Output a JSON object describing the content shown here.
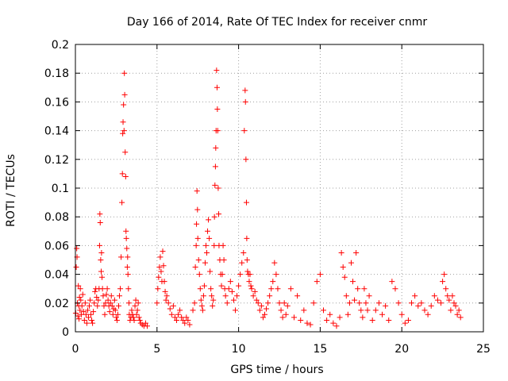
{
  "chart_data": {
    "type": "scatter",
    "title": "Day 166 of 2014, Rate Of TEC Index for receiver cnmr",
    "xlabel": "GPS time / hours",
    "ylabel": "ROTI / TECUs",
    "xlim": [
      0,
      25
    ],
    "ylim": [
      0,
      0.2
    ],
    "xticks": [
      0,
      5,
      10,
      15,
      20,
      25
    ],
    "xtick_labels": [
      "0",
      "5",
      "10",
      "15",
      "20",
      "25"
    ],
    "yticks": [
      0,
      0.02,
      0.04,
      0.06,
      0.08,
      0.1,
      0.12,
      0.14,
      0.16,
      0.18,
      0.2
    ],
    "ytick_labels": [
      "0",
      "0.02",
      "0.04",
      "0.06",
      "0.08",
      "0.1",
      "0.12",
      "0.14",
      "0.16",
      "0.18",
      "0.2"
    ],
    "grid": true,
    "marker": "+",
    "color": "#ff0000",
    "series": [
      {
        "name": "ROTI",
        "x": [
          0.02,
          0.05,
          0.08,
          0.1,
          0.12,
          0.15,
          0.18,
          0.2,
          0.22,
          0.25,
          0.28,
          0.3,
          0.33,
          0.36,
          0.4,
          0.45,
          0.5,
          0.55,
          0.6,
          0.65,
          0.7,
          0.75,
          0.8,
          0.85,
          0.9,
          0.95,
          1.0,
          1.05,
          1.1,
          1.15,
          1.2,
          1.25,
          1.3,
          1.35,
          1.4,
          1.45,
          1.48,
          1.5,
          1.52,
          1.55,
          1.58,
          1.6,
          1.63,
          1.66,
          1.7,
          1.75,
          1.8,
          1.85,
          1.9,
          1.95,
          2.0,
          2.05,
          2.1,
          2.15,
          2.2,
          2.25,
          2.3,
          2.35,
          2.4,
          2.45,
          2.5,
          2.55,
          2.6,
          2.65,
          2.7,
          2.75,
          2.8,
          2.85,
          2.88,
          2.9,
          2.92,
          2.95,
          2.98,
          3.0,
          3.02,
          3.05,
          3.08,
          3.1,
          3.12,
          3.15,
          3.18,
          3.2,
          3.22,
          3.25,
          3.28,
          3.3,
          3.35,
          3.4,
          3.45,
          3.5,
          3.55,
          3.6,
          3.65,
          3.7,
          3.75,
          3.8,
          3.85,
          3.9,
          3.95,
          4.0,
          4.1,
          4.2,
          4.3,
          4.4,
          5.0,
          5.05,
          5.1,
          5.15,
          5.2,
          5.25,
          5.3,
          5.35,
          5.4,
          5.45,
          5.5,
          5.55,
          5.6,
          5.7,
          5.8,
          5.9,
          6.0,
          6.1,
          6.2,
          6.3,
          6.4,
          6.5,
          6.6,
          6.7,
          6.8,
          6.9,
          7.0,
          7.2,
          7.3,
          7.35,
          7.4,
          7.42,
          7.45,
          7.48,
          7.5,
          7.55,
          7.6,
          7.65,
          7.7,
          7.75,
          7.8,
          7.85,
          7.9,
          7.95,
          8.0,
          8.05,
          8.1,
          8.15,
          8.2,
          8.25,
          8.3,
          8.35,
          8.4,
          8.45,
          8.5,
          8.52,
          8.55,
          8.58,
          8.6,
          8.62,
          8.65,
          8.68,
          8.7,
          8.72,
          8.75,
          8.78,
          8.8,
          8.85,
          8.9,
          8.95,
          9.0,
          9.05,
          9.1,
          9.15,
          9.2,
          9.3,
          9.4,
          9.5,
          9.6,
          9.7,
          9.8,
          9.9,
          10.0,
          10.1,
          10.2,
          10.3,
          10.35,
          10.4,
          10.42,
          10.45,
          10.48,
          10.5,
          10.52,
          10.55,
          10.6,
          10.65,
          10.7,
          10.75,
          10.8,
          10.9,
          11.0,
          11.1,
          11.2,
          11.3,
          11.4,
          11.5,
          11.6,
          11.7,
          11.8,
          11.9,
          12.0,
          12.1,
          12.2,
          12.3,
          12.4,
          12.5,
          12.6,
          12.7,
          12.8,
          12.9,
          13.0,
          13.2,
          13.4,
          13.6,
          13.8,
          14.0,
          14.2,
          14.4,
          14.6,
          14.8,
          15.0,
          15.2,
          15.4,
          15.6,
          15.8,
          16.0,
          16.2,
          16.3,
          16.4,
          16.5,
          16.6,
          16.7,
          16.8,
          16.9,
          17.0,
          17.1,
          17.2,
          17.3,
          17.4,
          17.5,
          17.6,
          17.7,
          17.8,
          17.9,
          18.0,
          18.2,
          18.4,
          18.6,
          18.8,
          19.0,
          19.2,
          19.4,
          19.6,
          19.8,
          20.0,
          20.2,
          20.4,
          20.6,
          20.8,
          21.0,
          21.2,
          21.4,
          21.6,
          21.8,
          22.0,
          22.2,
          22.4,
          22.5,
          22.6,
          22.7,
          22.8,
          22.9,
          23.0,
          23.1,
          23.2,
          23.3,
          23.4,
          23.5,
          23.6
        ],
        "y": [
          0.013,
          0.045,
          0.058,
          0.052,
          0.02,
          0.011,
          0.032,
          0.018,
          0.009,
          0.024,
          0.015,
          0.03,
          0.022,
          0.012,
          0.018,
          0.026,
          0.014,
          0.008,
          0.02,
          0.012,
          0.006,
          0.015,
          0.01,
          0.018,
          0.022,
          0.012,
          0.008,
          0.006,
          0.014,
          0.02,
          0.028,
          0.03,
          0.024,
          0.018,
          0.022,
          0.03,
          0.06,
          0.082,
          0.076,
          0.05,
          0.042,
          0.055,
          0.038,
          0.03,
          0.025,
          0.018,
          0.012,
          0.02,
          0.026,
          0.03,
          0.022,
          0.018,
          0.014,
          0.02,
          0.025,
          0.018,
          0.012,
          0.016,
          0.022,
          0.015,
          0.01,
          0.008,
          0.012,
          0.018,
          0.025,
          0.03,
          0.052,
          0.09,
          0.11,
          0.138,
          0.146,
          0.158,
          0.14,
          0.18,
          0.165,
          0.125,
          0.108,
          0.07,
          0.065,
          0.058,
          0.045,
          0.052,
          0.04,
          0.03,
          0.02,
          0.012,
          0.008,
          0.01,
          0.015,
          0.012,
          0.01,
          0.008,
          0.018,
          0.022,
          0.012,
          0.015,
          0.02,
          0.01,
          0.008,
          0.006,
          0.005,
          0.004,
          0.006,
          0.004,
          0.02,
          0.03,
          0.038,
          0.045,
          0.052,
          0.042,
          0.035,
          0.056,
          0.046,
          0.035,
          0.028,
          0.022,
          0.025,
          0.02,
          0.016,
          0.012,
          0.018,
          0.01,
          0.008,
          0.012,
          0.015,
          0.01,
          0.008,
          0.006,
          0.01,
          0.008,
          0.005,
          0.015,
          0.02,
          0.045,
          0.06,
          0.075,
          0.098,
          0.085,
          0.065,
          0.05,
          0.04,
          0.03,
          0.022,
          0.018,
          0.015,
          0.025,
          0.032,
          0.048,
          0.06,
          0.055,
          0.07,
          0.078,
          0.065,
          0.042,
          0.03,
          0.025,
          0.018,
          0.022,
          0.06,
          0.08,
          0.102,
          0.115,
          0.128,
          0.14,
          0.182,
          0.17,
          0.155,
          0.14,
          0.1,
          0.082,
          0.06,
          0.05,
          0.04,
          0.032,
          0.04,
          0.06,
          0.05,
          0.03,
          0.025,
          0.02,
          0.03,
          0.035,
          0.028,
          0.022,
          0.015,
          0.025,
          0.032,
          0.04,
          0.048,
          0.055,
          0.14,
          0.168,
          0.16,
          0.12,
          0.09,
          0.065,
          0.05,
          0.042,
          0.04,
          0.035,
          0.04,
          0.032,
          0.03,
          0.025,
          0.028,
          0.022,
          0.02,
          0.015,
          0.018,
          0.01,
          0.012,
          0.016,
          0.02,
          0.025,
          0.03,
          0.035,
          0.048,
          0.04,
          0.03,
          0.02,
          0.015,
          0.01,
          0.02,
          0.012,
          0.018,
          0.03,
          0.01,
          0.025,
          0.008,
          0.015,
          0.006,
          0.005,
          0.02,
          0.035,
          0.04,
          0.015,
          0.008,
          0.012,
          0.006,
          0.004,
          0.01,
          0.055,
          0.045,
          0.038,
          0.025,
          0.012,
          0.02,
          0.048,
          0.035,
          0.022,
          0.055,
          0.03,
          0.02,
          0.015,
          0.01,
          0.03,
          0.02,
          0.015,
          0.025,
          0.008,
          0.015,
          0.02,
          0.012,
          0.018,
          0.008,
          0.035,
          0.03,
          0.02,
          0.012,
          0.006,
          0.008,
          0.02,
          0.025,
          0.018,
          0.02,
          0.015,
          0.012,
          0.018,
          0.025,
          0.022,
          0.02,
          0.035,
          0.04,
          0.03,
          0.025,
          0.022,
          0.015,
          0.025,
          0.02,
          0.018,
          0.012,
          0.015,
          0.01
        ]
      }
    ]
  }
}
